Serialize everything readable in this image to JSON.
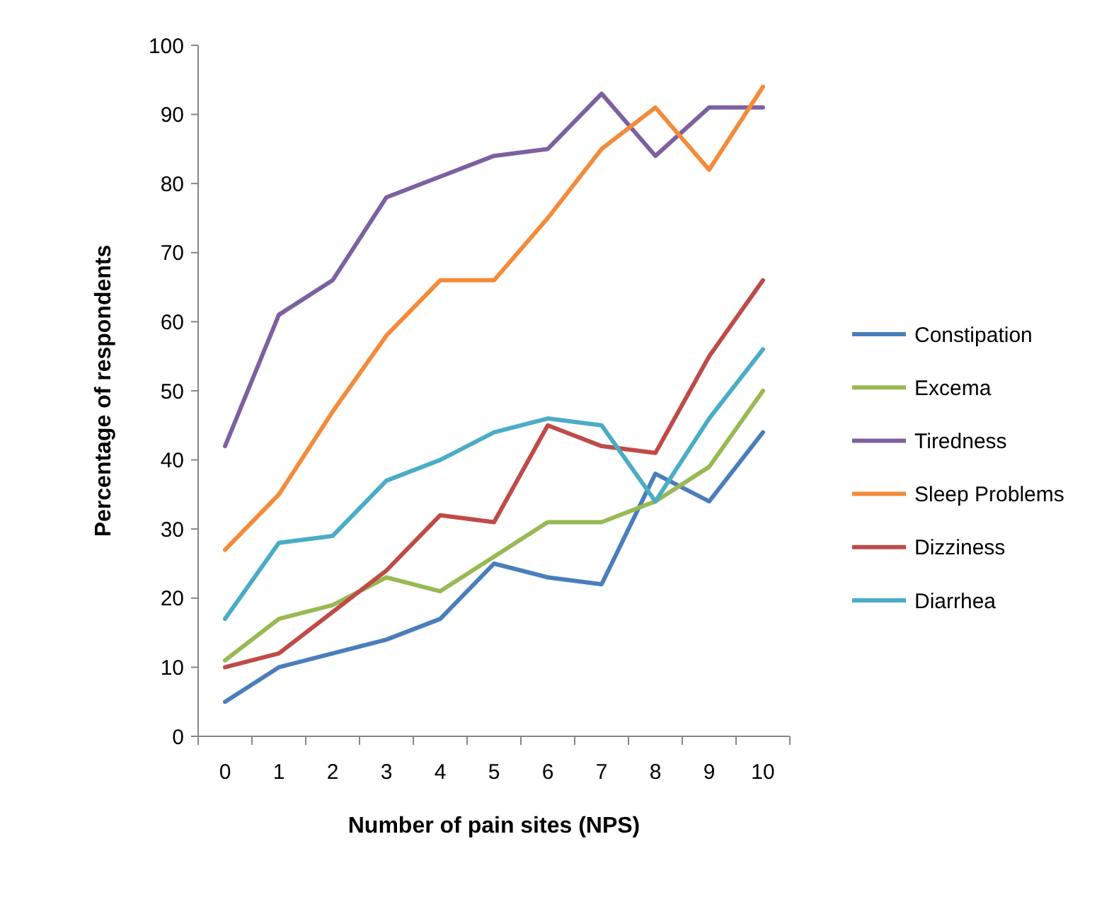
{
  "chart_data": {
    "type": "line",
    "xlabel": "Number of pain sites (NPS)",
    "ylabel": "Percentage of respondents",
    "categories": [
      "0",
      "1",
      "2",
      "3",
      "4",
      "5",
      "6",
      "7",
      "8",
      "9",
      "10"
    ],
    "ylim": [
      0,
      100
    ],
    "yticks": [
      0,
      10,
      20,
      30,
      40,
      50,
      60,
      70,
      80,
      90,
      100
    ],
    "grid": false,
    "legend": "right",
    "marker": "none",
    "line_style": "solid",
    "series": [
      {
        "name": "Constipation",
        "color": "#4a7ebb",
        "values": [
          5,
          10,
          12,
          14,
          17,
          25,
          23,
          22,
          38,
          34,
          44
        ]
      },
      {
        "name": "Excema",
        "color": "#98b954",
        "values": [
          11,
          17,
          19,
          23,
          21,
          26,
          31,
          31,
          34,
          39,
          50
        ]
      },
      {
        "name": "Tiredness",
        "color": "#7d60a0",
        "values": [
          42,
          61,
          66,
          78,
          81,
          84,
          85,
          93,
          84,
          91,
          91
        ]
      },
      {
        "name": "Sleep Problems",
        "color": "#f38b3a",
        "values": [
          27,
          35,
          47,
          58,
          66,
          66,
          75,
          85,
          91,
          82,
          94
        ]
      },
      {
        "name": "Dizziness",
        "color": "#be4b48",
        "values": [
          10,
          12,
          18,
          24,
          32,
          31,
          45,
          42,
          41,
          55,
          66
        ]
      },
      {
        "name": "Diarrhea",
        "color": "#4bacc6",
        "values": [
          17,
          28,
          29,
          37,
          40,
          44,
          46,
          45,
          34,
          46,
          56
        ]
      }
    ]
  }
}
